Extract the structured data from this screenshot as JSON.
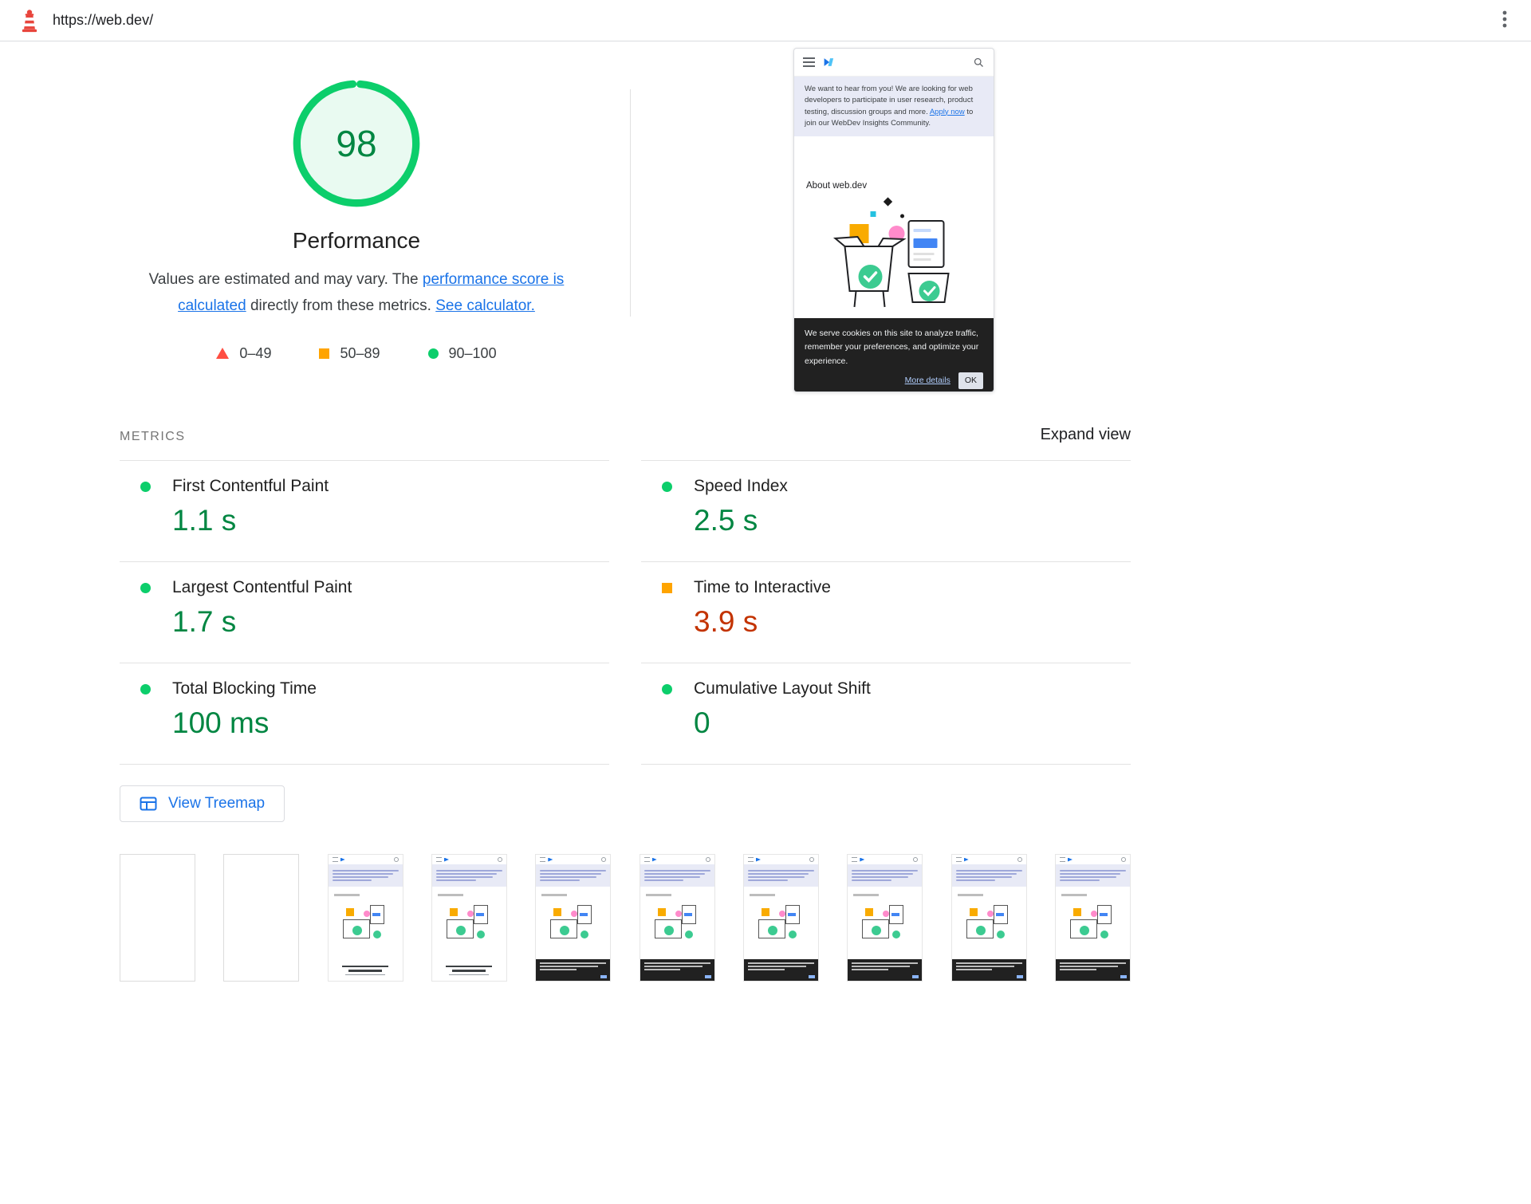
{
  "colors": {
    "pass": "#0cce6b",
    "pass-text": "#018642",
    "average": "#ffa400",
    "average-text": "#c33300",
    "fail": "#ff4e42",
    "link": "#1a73e8",
    "brand-red": "#e8453c"
  },
  "topbar": {
    "url": "https://web.dev/"
  },
  "score": {
    "value": "98",
    "label": "Performance",
    "description": {
      "pre": "Values are estimated and may vary. The ",
      "link_metrics": "performance score is calculated",
      "mid": " directly from these metrics. ",
      "link_calculator": "See calculator."
    },
    "legend": [
      {
        "range": "0–49",
        "shape": "triangle"
      },
      {
        "range": "50–89",
        "shape": "square"
      },
      {
        "range": "90–100",
        "shape": "circle"
      }
    ]
  },
  "preview": {
    "banner": {
      "text_pre": "We want to hear from you! We are looking for web developers to participate in user research, product testing, discussion groups and more. ",
      "link": "Apply now",
      "text_post": " to join our WebDev Insights Community."
    },
    "about_heading": "About web.dev",
    "cookie": {
      "text": "We serve cookies on this site to analyze traffic, remember your preferences, and optimize your experience.",
      "details_link": "More details",
      "ok_label": "OK"
    }
  },
  "metrics": {
    "section_title": "METRICS",
    "expand_label": "Expand view",
    "items": [
      {
        "name": "First Contentful Paint",
        "value": "1.1 s",
        "status": "pass"
      },
      {
        "name": "Speed Index",
        "value": "2.5 s",
        "status": "pass"
      },
      {
        "name": "Largest Contentful Paint",
        "value": "1.7 s",
        "status": "pass"
      },
      {
        "name": "Time to Interactive",
        "value": "3.9 s",
        "status": "average"
      },
      {
        "name": "Total Blocking Time",
        "value": "100 ms",
        "status": "pass"
      },
      {
        "name": "Cumulative Layout Shift",
        "value": "0",
        "status": "pass"
      }
    ]
  },
  "treemap": {
    "label": "View Treemap"
  },
  "filmstrip": {
    "frames": [
      "blank",
      "blank",
      "partial",
      "partial",
      "loaded",
      "loaded",
      "loaded",
      "loaded",
      "loaded",
      "loaded"
    ]
  }
}
